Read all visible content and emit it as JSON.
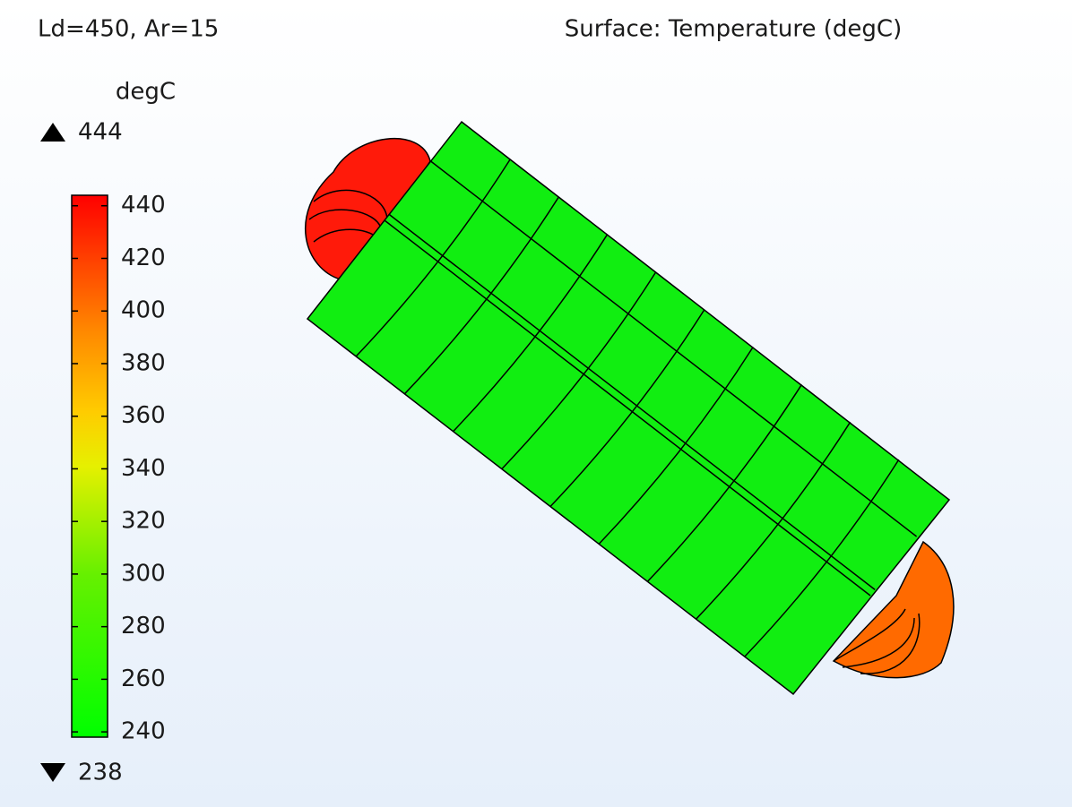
{
  "header": {
    "left_label": "Ld=450, Ar=15",
    "title": "Surface: Temperature (degC)"
  },
  "legend": {
    "unit": "degC",
    "max": 444,
    "min": 238,
    "ticks": [
      240,
      260,
      280,
      300,
      320,
      340,
      360,
      380,
      400,
      420,
      440
    ]
  }
}
